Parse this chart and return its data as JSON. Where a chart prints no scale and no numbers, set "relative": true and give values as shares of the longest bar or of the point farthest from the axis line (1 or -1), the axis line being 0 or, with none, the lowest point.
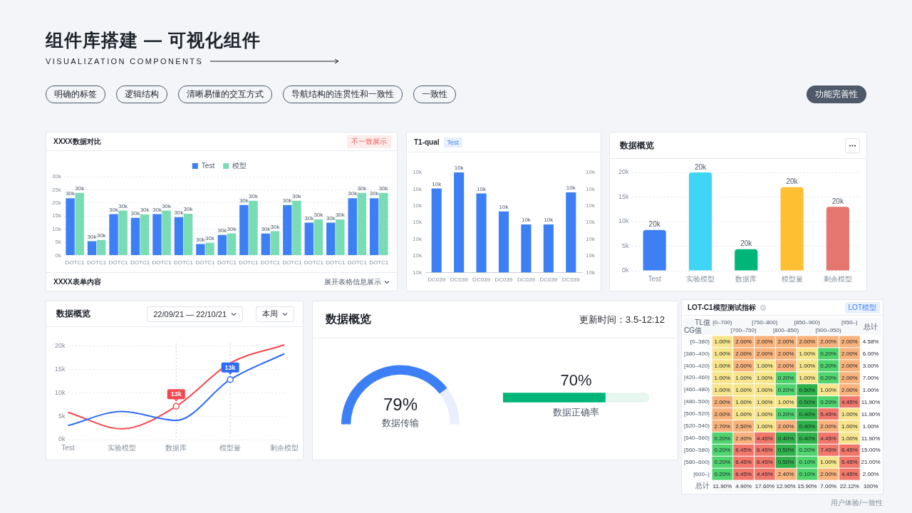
{
  "chart_data": [
    {
      "type": "other",
      "title": "组件库搭建 — 可视化组件",
      "subtitle": "VISUALIZATION COMPONENTS",
      "annotations": [
        "明确的标签",
        "逻辑结构",
        "清晰易懂的交互方式",
        "导航结构的连贯性和一致性",
        "一致性",
        "功能完善性"
      ]
    },
    {
      "type": "bar",
      "title": "XXXX数据对比",
      "categories": [
        "DOTC1",
        "DOTC1",
        "DOTC1",
        "DOTC1",
        "DOTC1",
        "DOTC1",
        "DOTC1",
        "DOTC1",
        "DOTC1",
        "DOTC1",
        "DOTC1",
        "DOTC1",
        "DOTC1",
        "DOTC1",
        "DOTC1"
      ],
      "series": [
        {
          "name": "Test",
          "color": "#3d7ff5",
          "values": [
            21.8,
            5.4,
            15.7,
            14.3,
            15.7,
            14.6,
            4.3,
            7.8,
            19.2,
            8.3,
            19.2,
            12.5,
            12.5,
            21.8,
            21.8
          ]
        },
        {
          "name": "模型",
          "color": "#78dcb4",
          "values": [
            23.8,
            5.9,
            17.1,
            15.6,
            17.1,
            15.9,
            4.8,
            8.4,
            20.8,
            9.2,
            20.8,
            13.7,
            13.7,
            23.8,
            23.8
          ]
        }
      ],
      "ylim": [
        0,
        30
      ],
      "yticks": [
        {
          "value": 0,
          "label": "0k"
        },
        {
          "value": 5,
          "label": "5k"
        },
        {
          "value": 10,
          "label": "10k"
        },
        {
          "value": 15,
          "label": "15k"
        },
        {
          "value": 20,
          "label": "20k"
        },
        {
          "value": 25,
          "label": "25k"
        },
        {
          "value": 30,
          "label": "30k"
        }
      ],
      "grid": "y",
      "legend": "top",
      "annotations": [
        "不一致展示",
        "XXXX表单内容",
        "展开表格信息展示",
        "30k",
        "30k",
        "30k",
        "30k",
        "30k",
        "30k",
        "30k",
        "30k",
        "30k",
        "30k",
        "30k",
        "30k",
        "30k",
        "30k",
        "30k",
        "30k",
        "30k",
        "30k",
        "30k",
        "30k",
        "30k",
        "30k",
        "30k",
        "30k",
        "30k",
        "30k",
        "30k",
        "30k",
        "30k",
        "30k"
      ]
    },
    {
      "type": "bar",
      "title": "T1-qual",
      "subtitle": "Test",
      "categories": [
        "DC039",
        "DC039",
        "DC039",
        "DC039",
        "DC039",
        "DC039",
        "DC039"
      ],
      "values": [
        0.84,
        1,
        0.79,
        0.61,
        0.48,
        0.48,
        0.8
      ],
      "color": "#3d7ff5",
      "relative": true,
      "annotations": [
        "10k",
        "10k",
        "10k",
        "10k",
        "10k",
        "10k",
        "10k",
        "10k",
        "10k",
        "10k",
        "10k",
        "10k",
        "10k",
        "10k",
        "10k",
        "10k",
        "10k",
        "10k",
        "10k",
        "10k",
        "10k"
      ]
    },
    {
      "type": "bar",
      "title": "数据概览",
      "categories": [
        "Test",
        "实验模型",
        "数据库",
        "模型量",
        "剩余模型"
      ],
      "values": [
        8.3,
        20,
        4.4,
        17,
        13
      ],
      "colors": [
        "#3d7ff5",
        "#3fd5f5",
        "#00b578",
        "#ffbf33",
        "#e5766f"
      ],
      "ylim": [
        0,
        20
      ],
      "yticks": [
        {
          "value": 0,
          "label": "0k"
        },
        {
          "value": 5,
          "label": "5k"
        },
        {
          "value": 10,
          "label": "10k"
        },
        {
          "value": 15,
          "label": "15k"
        },
        {
          "value": 20,
          "label": "20k"
        }
      ],
      "grid": "y",
      "annotations": [
        {
          "text": "20k",
          "x": "Test",
          "y": 8.3
        },
        {
          "text": "20k",
          "x": "实验模型",
          "y": 20
        },
        {
          "text": "20k",
          "x": "数据库",
          "y": 4.4
        },
        {
          "text": "20k",
          "x": "模型量",
          "y": 17
        },
        {
          "text": "20k",
          "x": "剩余模型",
          "y": 13
        }
      ]
    },
    {
      "type": "line",
      "title": "数据概览",
      "categories": [
        "Test",
        "实验模型",
        "数据库",
        "模型量",
        "剩余模型"
      ],
      "series": [
        {
          "color": "#2f6cf6",
          "values": [
            3.0,
            6.0,
            4.1,
            12.8,
            18.3
          ]
        },
        {
          "color": "#f5474f",
          "values": [
            5.8,
            2.3,
            7.1,
            16.3,
            20.2
          ]
        }
      ],
      "ylim": [
        0,
        20.5
      ],
      "yticks": [
        {
          "value": 0,
          "label": "0k"
        },
        {
          "value": 5,
          "label": "5k"
        },
        {
          "value": 10,
          "label": "10k"
        },
        {
          "value": 15,
          "label": "15k"
        },
        {
          "value": 20,
          "label": "20k"
        }
      ],
      "grid": "y",
      "ref_lines": [
        {
          "axis": "x",
          "value": "数据库",
          "line_style": "dotted"
        },
        {
          "axis": "x",
          "value": "模型量",
          "line_style": "dotted"
        }
      ],
      "annotations": [
        "22/09/21 — 22/10/21",
        "本周",
        {
          "text": "13k",
          "x": "数据库",
          "y": 7.1
        },
        {
          "text": "13k",
          "x": "模型量",
          "y": 12.8
        }
      ]
    },
    {
      "type": "donut",
      "title": "数据概览",
      "subtitle": "更新时间：3.5-12:12",
      "categories": [
        "数据传输",
        null
      ],
      "values": [
        79,
        21
      ],
      "colors": [
        "#3d7ff5",
        "#e8f0fd"
      ],
      "value_labels": [
        "79%",
        null
      ]
    },
    {
      "type": "bar",
      "orientation": "horizontal",
      "stacked": true,
      "categories": [
        "数据正确率"
      ],
      "series": [
        {
          "color": "#00b578",
          "values": [
            70
          ],
          "value_labels": [
            "70%"
          ]
        },
        {
          "color": "#e6f7ef",
          "values": [
            30
          ]
        }
      ]
    },
    {
      "type": "heatmap",
      "title": "LOT-C1模型测试指标",
      "xlabel": "TL值",
      "ylabel": "CG值",
      "categories": [
        "[0–700)",
        "[700–750)",
        "[750–800)",
        "[800–850)",
        "[850–900)",
        "[900–950)",
        "[950–)",
        "总计"
      ],
      "y_categories": [
        "[0–380)",
        "[380–400)",
        "[400–420)",
        "[420–460)",
        "[460–480)",
        "[480–500)",
        "[500–520)",
        "[520–540)",
        "[540–560)",
        "[560–580)",
        "[580–600)",
        "[600–)",
        "总计"
      ],
      "cells": [
        [
          1,
          2,
          2,
          2,
          2,
          2,
          2,
          4.58
        ],
        [
          1,
          2,
          2,
          2,
          1,
          0.2,
          2,
          6
        ],
        [
          1,
          2,
          1,
          2,
          1,
          0.2,
          2,
          3
        ],
        [
          1,
          1,
          1,
          0.2,
          1,
          0.2,
          2,
          7
        ],
        [
          1,
          1,
          1,
          0.2,
          0.5,
          1,
          2,
          1
        ],
        [
          2,
          1,
          1,
          1,
          0.5,
          0.2,
          4.45,
          11.9
        ],
        [
          2,
          1,
          1,
          0.2,
          0.4,
          5.45,
          1,
          11.9
        ],
        [
          2.7,
          2.5,
          1,
          2,
          0.4,
          2,
          1,
          1
        ],
        [
          0.2,
          2.9,
          4.45,
          0.4,
          0.4,
          4.45,
          1,
          11.9
        ],
        [
          0.2,
          6.45,
          6.45,
          0.5,
          0.2,
          7.45,
          6.45,
          15
        ],
        [
          0.2,
          6.45,
          6.45,
          0.5,
          0.1,
          1,
          5.45,
          21
        ],
        [
          0.2,
          6.45,
          4.45,
          2.4,
          0.1,
          2,
          4.45,
          2
        ],
        [
          11.9,
          4.9,
          17.6,
          12.9,
          15.9,
          7,
          22.12,
          100
        ]
      ],
      "cell_labels": [
        [
          "1.00%",
          "2.00%",
          "2.00%",
          "2.00%",
          "2.00%",
          "2.00%",
          "2.00%",
          "4.58%"
        ],
        [
          "1.00%",
          "2.00%",
          "2.00%",
          "2.00%",
          "1.00%",
          "0.20%",
          "2.00%",
          "6.00%"
        ],
        [
          "1.00%",
          "2.00%",
          "1.00%",
          "2.00%",
          "1.00%",
          "0.20%",
          "2.00%",
          "3.00%"
        ],
        [
          "1.00%",
          "1.00%",
          "1.00%",
          "0.20%",
          "1.00%",
          "0.20%",
          "2.00%",
          "7.00%"
        ],
        [
          "1.00%",
          "1.00%",
          "1.00%",
          "0.20%",
          "0.50%",
          "1.00%",
          "2.00%",
          "1.00%"
        ],
        [
          "2.00%",
          "1.00%",
          "1.00%",
          "1.00%",
          "0.50%",
          "0.20%",
          "4.45%",
          "11.90%"
        ],
        [
          "2.00%",
          "1.00%",
          "1.00%",
          "0.20%",
          "0.40%",
          "5.45%",
          "1.00%",
          "11.90%"
        ],
        [
          "2.70%",
          "2.50%",
          "1.00%",
          "2.00%",
          "0.40%",
          "2.00%",
          "1.00%",
          "1.00%"
        ],
        [
          "0.20%",
          "2.90%",
          "4.45%",
          "0.40%",
          "0.40%",
          "4.45%",
          "1.00%",
          "11.90%"
        ],
        [
          "0.20%",
          "6.45%",
          "6.45%",
          "0.50%",
          "0.20%",
          "7.45%",
          "6.45%",
          "15.00%"
        ],
        [
          "0.20%",
          "6.45%",
          "6.45%",
          "0.50%",
          "0.10%",
          "1.00%",
          "5.45%",
          "21.00%"
        ],
        [
          "0.20%",
          "6.45%",
          "4.45%",
          "2.40%",
          "0.10%",
          "2.00%",
          "4.45%",
          "2.00%"
        ],
        [
          "11.90%",
          "4.90%",
          "17.60%",
          "12.90%",
          "15.90%",
          "7.00%",
          "22.12%",
          "100%"
        ]
      ],
      "colors": [
        [
          "#f7e58b",
          "#f8b27a",
          "#f8b27a",
          "#f8b27a",
          "#f8b27a",
          "#f8b27a",
          "#f8b27a",
          "#ffffff"
        ],
        [
          "#f7e58b",
          "#f8b27a",
          "#f8b27a",
          "#f8b27a",
          "#f7e58b",
          "#4fd46e",
          "#f8b27a",
          "#ffffff"
        ],
        [
          "#f7e58b",
          "#f8b27a",
          "#f7e58b",
          "#f8b27a",
          "#f7e58b",
          "#4fd46e",
          "#f8b27a",
          "#ffffff"
        ],
        [
          "#f7e58b",
          "#f7e58b",
          "#f7e58b",
          "#4fd46e",
          "#f7e58b",
          "#4fd46e",
          "#f8b27a",
          "#ffffff"
        ],
        [
          "#f7e58b",
          "#f7e58b",
          "#f7e58b",
          "#4fd46e",
          "#2fb24a",
          "#f7e58b",
          "#f8b27a",
          "#ffffff"
        ],
        [
          "#f8b27a",
          "#f7e58b",
          "#f7e58b",
          "#f7e58b",
          "#2fb24a",
          "#4fd46e",
          "#f2776b",
          "#ffffff"
        ],
        [
          "#f8b27a",
          "#f7e58b",
          "#f7e58b",
          "#4fd46e",
          "#2fb24a",
          "#f2776b",
          "#f7e58b",
          "#ffffff"
        ],
        [
          "#f8b27a",
          "#f8b27a",
          "#f7e58b",
          "#f8b27a",
          "#2fb24a",
          "#f8b27a",
          "#f7e58b",
          "#ffffff"
        ],
        [
          "#4fd46e",
          "#f8b27a",
          "#f2776b",
          "#2fb24a",
          "#2fb24a",
          "#f2776b",
          "#f7e58b",
          "#ffffff"
        ],
        [
          "#4fd46e",
          "#f2776b",
          "#f2776b",
          "#2fb24a",
          "#4fd46e",
          "#f2776b",
          "#f2776b",
          "#ffffff"
        ],
        [
          "#4fd46e",
          "#f2776b",
          "#f2776b",
          "#2fb24a",
          "#4fd46e",
          "#f7e58b",
          "#f2776b",
          "#ffffff"
        ],
        [
          "#4fd46e",
          "#f2776b",
          "#f2776b",
          "#f8b27a",
          "#4fd46e",
          "#f8b27a",
          "#f2776b",
          "#ffffff"
        ],
        [
          "#f7f8fa",
          "#f7f8fa",
          "#f7f8fa",
          "#f7f8fa",
          "#f7f8fa",
          "#f7f8fa",
          "#f7f8fa",
          "#f7f8fa"
        ]
      ],
      "annotations": [
        "LOT模型",
        "用户体验/一致性"
      ]
    }
  ]
}
